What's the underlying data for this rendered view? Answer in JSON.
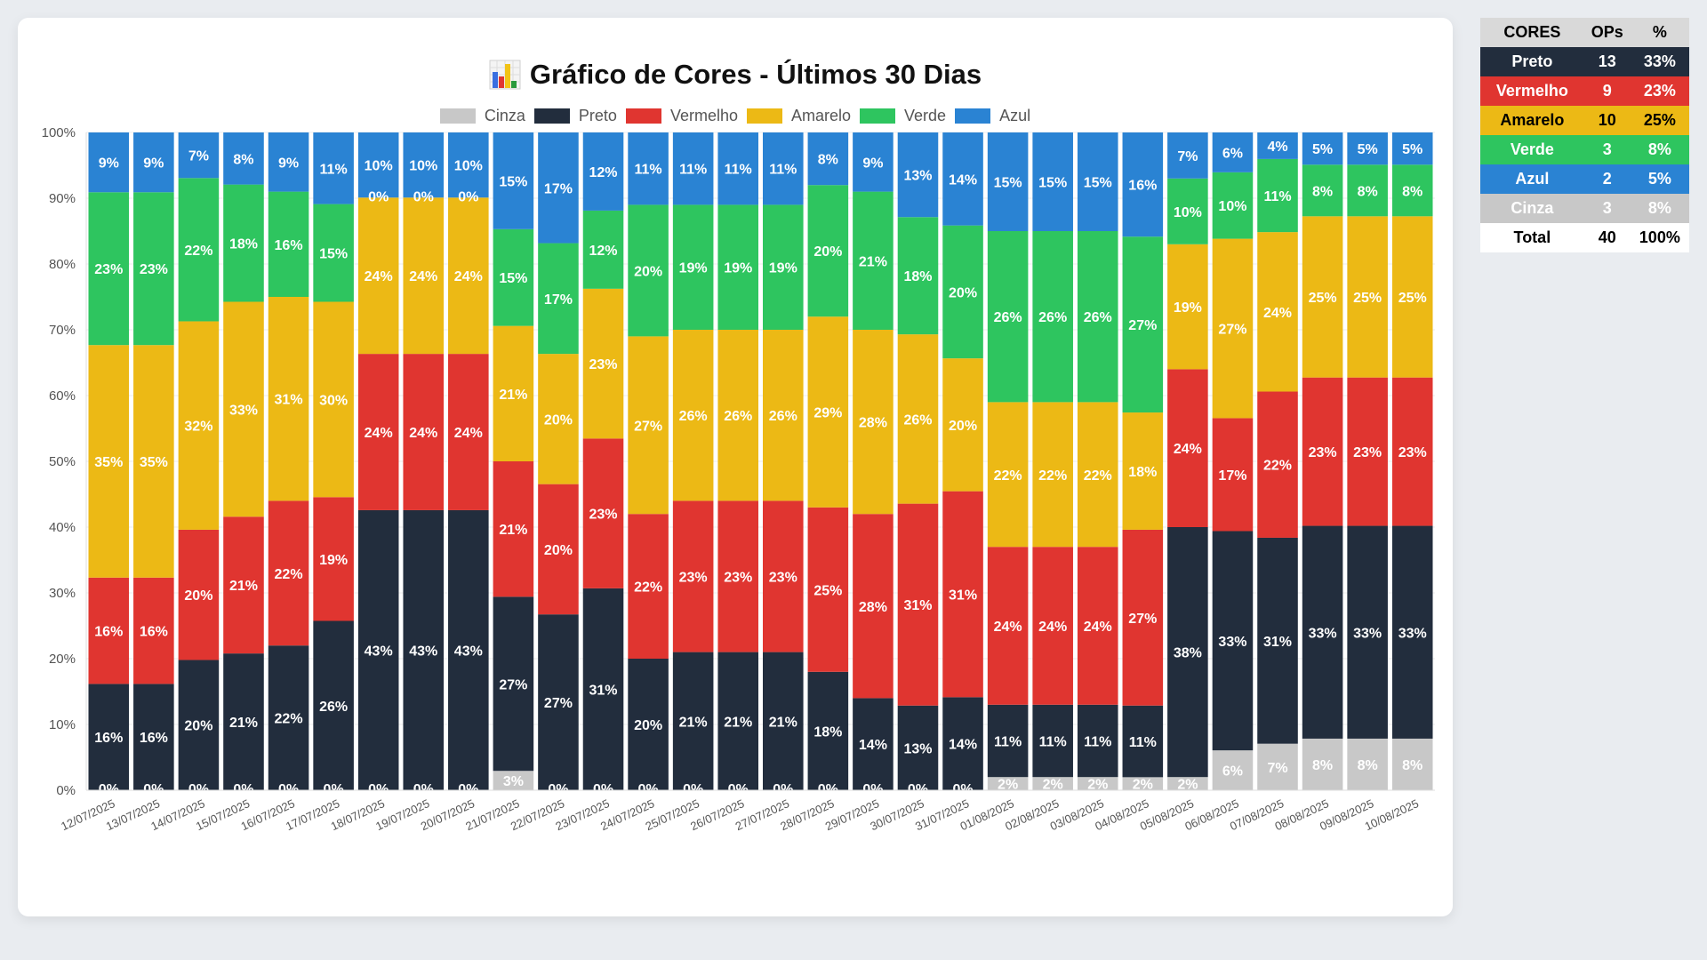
{
  "title": "Gráfico de Cores - Últimos 30 Dias",
  "title_icon": "bar-chart-icon",
  "colors": {
    "Cinza": "#c8c8c8",
    "Preto": "#222d3d",
    "Vermelho": "#e03530",
    "Amarelo": "#ecb915",
    "Verde": "#2ec55f",
    "Azul": "#2a83d3"
  },
  "chart_data": {
    "type": "bar",
    "stacked": true,
    "normalized": true,
    "title": "Gráfico de Cores - Últimos 30 Dias",
    "xlabel": "",
    "ylabel": "",
    "ylim": [
      0,
      100
    ],
    "yticks": [
      "0%",
      "10%",
      "20%",
      "30%",
      "40%",
      "50%",
      "60%",
      "70%",
      "80%",
      "90%",
      "100%"
    ],
    "grid": true,
    "legend_position": "top-center",
    "categories": [
      "12/07/2025",
      "13/07/2025",
      "14/07/2025",
      "15/07/2025",
      "16/07/2025",
      "17/07/2025",
      "18/07/2025",
      "19/07/2025",
      "20/07/2025",
      "21/07/2025",
      "22/07/2025",
      "23/07/2025",
      "24/07/2025",
      "25/07/2025",
      "26/07/2025",
      "27/07/2025",
      "28/07/2025",
      "29/07/2025",
      "30/07/2025",
      "31/07/2025",
      "01/08/2025",
      "02/08/2025",
      "03/08/2025",
      "04/08/2025",
      "05/08/2025",
      "06/08/2025",
      "07/08/2025",
      "08/08/2025",
      "09/08/2025",
      "10/08/2025"
    ],
    "series": [
      {
        "name": "Cinza",
        "values": [
          0,
          0,
          0,
          0,
          0,
          0,
          0,
          0,
          0,
          3,
          0,
          0,
          0,
          0,
          0,
          0,
          0,
          0,
          0,
          0,
          2,
          2,
          2,
          2,
          2,
          6,
          7,
          8,
          8,
          8
        ]
      },
      {
        "name": "Preto",
        "values": [
          16,
          16,
          20,
          21,
          22,
          26,
          43,
          43,
          43,
          27,
          27,
          31,
          20,
          21,
          21,
          21,
          18,
          14,
          13,
          14,
          11,
          11,
          11,
          11,
          38,
          33,
          31,
          33,
          33,
          33
        ]
      },
      {
        "name": "Vermelho",
        "values": [
          16,
          16,
          20,
          21,
          22,
          19,
          24,
          24,
          24,
          21,
          20,
          23,
          22,
          23,
          23,
          23,
          25,
          28,
          31,
          31,
          24,
          24,
          24,
          27,
          24,
          17,
          22,
          23,
          23,
          23
        ]
      },
      {
        "name": "Amarelo",
        "values": [
          35,
          35,
          32,
          33,
          31,
          30,
          24,
          24,
          24,
          21,
          20,
          23,
          27,
          26,
          26,
          26,
          29,
          28,
          26,
          20,
          22,
          22,
          22,
          18,
          19,
          27,
          24,
          25,
          25,
          25
        ]
      },
      {
        "name": "Verde",
        "values": [
          23,
          23,
          22,
          18,
          16,
          15,
          0,
          0,
          0,
          15,
          17,
          12,
          20,
          19,
          19,
          19,
          20,
          21,
          18,
          20,
          26,
          26,
          26,
          27,
          10,
          10,
          11,
          8,
          8,
          8
        ]
      },
      {
        "name": "Azul",
        "values": [
          9,
          9,
          7,
          8,
          9,
          11,
          10,
          10,
          10,
          15,
          17,
          12,
          11,
          11,
          11,
          11,
          8,
          9,
          13,
          14,
          15,
          15,
          15,
          16,
          7,
          6,
          4,
          5,
          5,
          5
        ]
      }
    ]
  },
  "summary_table": {
    "headers": [
      "CORES",
      "OPs",
      "%"
    ],
    "rows": [
      {
        "name": "Preto",
        "ops": "13",
        "pct": "33%",
        "bg": "#222d3d",
        "fg": "#ffffff"
      },
      {
        "name": "Vermelho",
        "ops": "9",
        "pct": "23%",
        "bg": "#e03530",
        "fg": "#ffffff"
      },
      {
        "name": "Amarelo",
        "ops": "10",
        "pct": "25%",
        "bg": "#ecb915",
        "fg": "#000000"
      },
      {
        "name": "Verde",
        "ops": "3",
        "pct": "8%",
        "bg": "#2ec55f",
        "fg": "#ffffff"
      },
      {
        "name": "Azul",
        "ops": "2",
        "pct": "5%",
        "bg": "#2a83d3",
        "fg": "#ffffff"
      },
      {
        "name": "Cinza",
        "ops": "3",
        "pct": "8%",
        "bg": "#c8c8c8",
        "fg": "#ffffff"
      }
    ],
    "total": {
      "name": "Total",
      "ops": "40",
      "pct": "100%"
    }
  }
}
